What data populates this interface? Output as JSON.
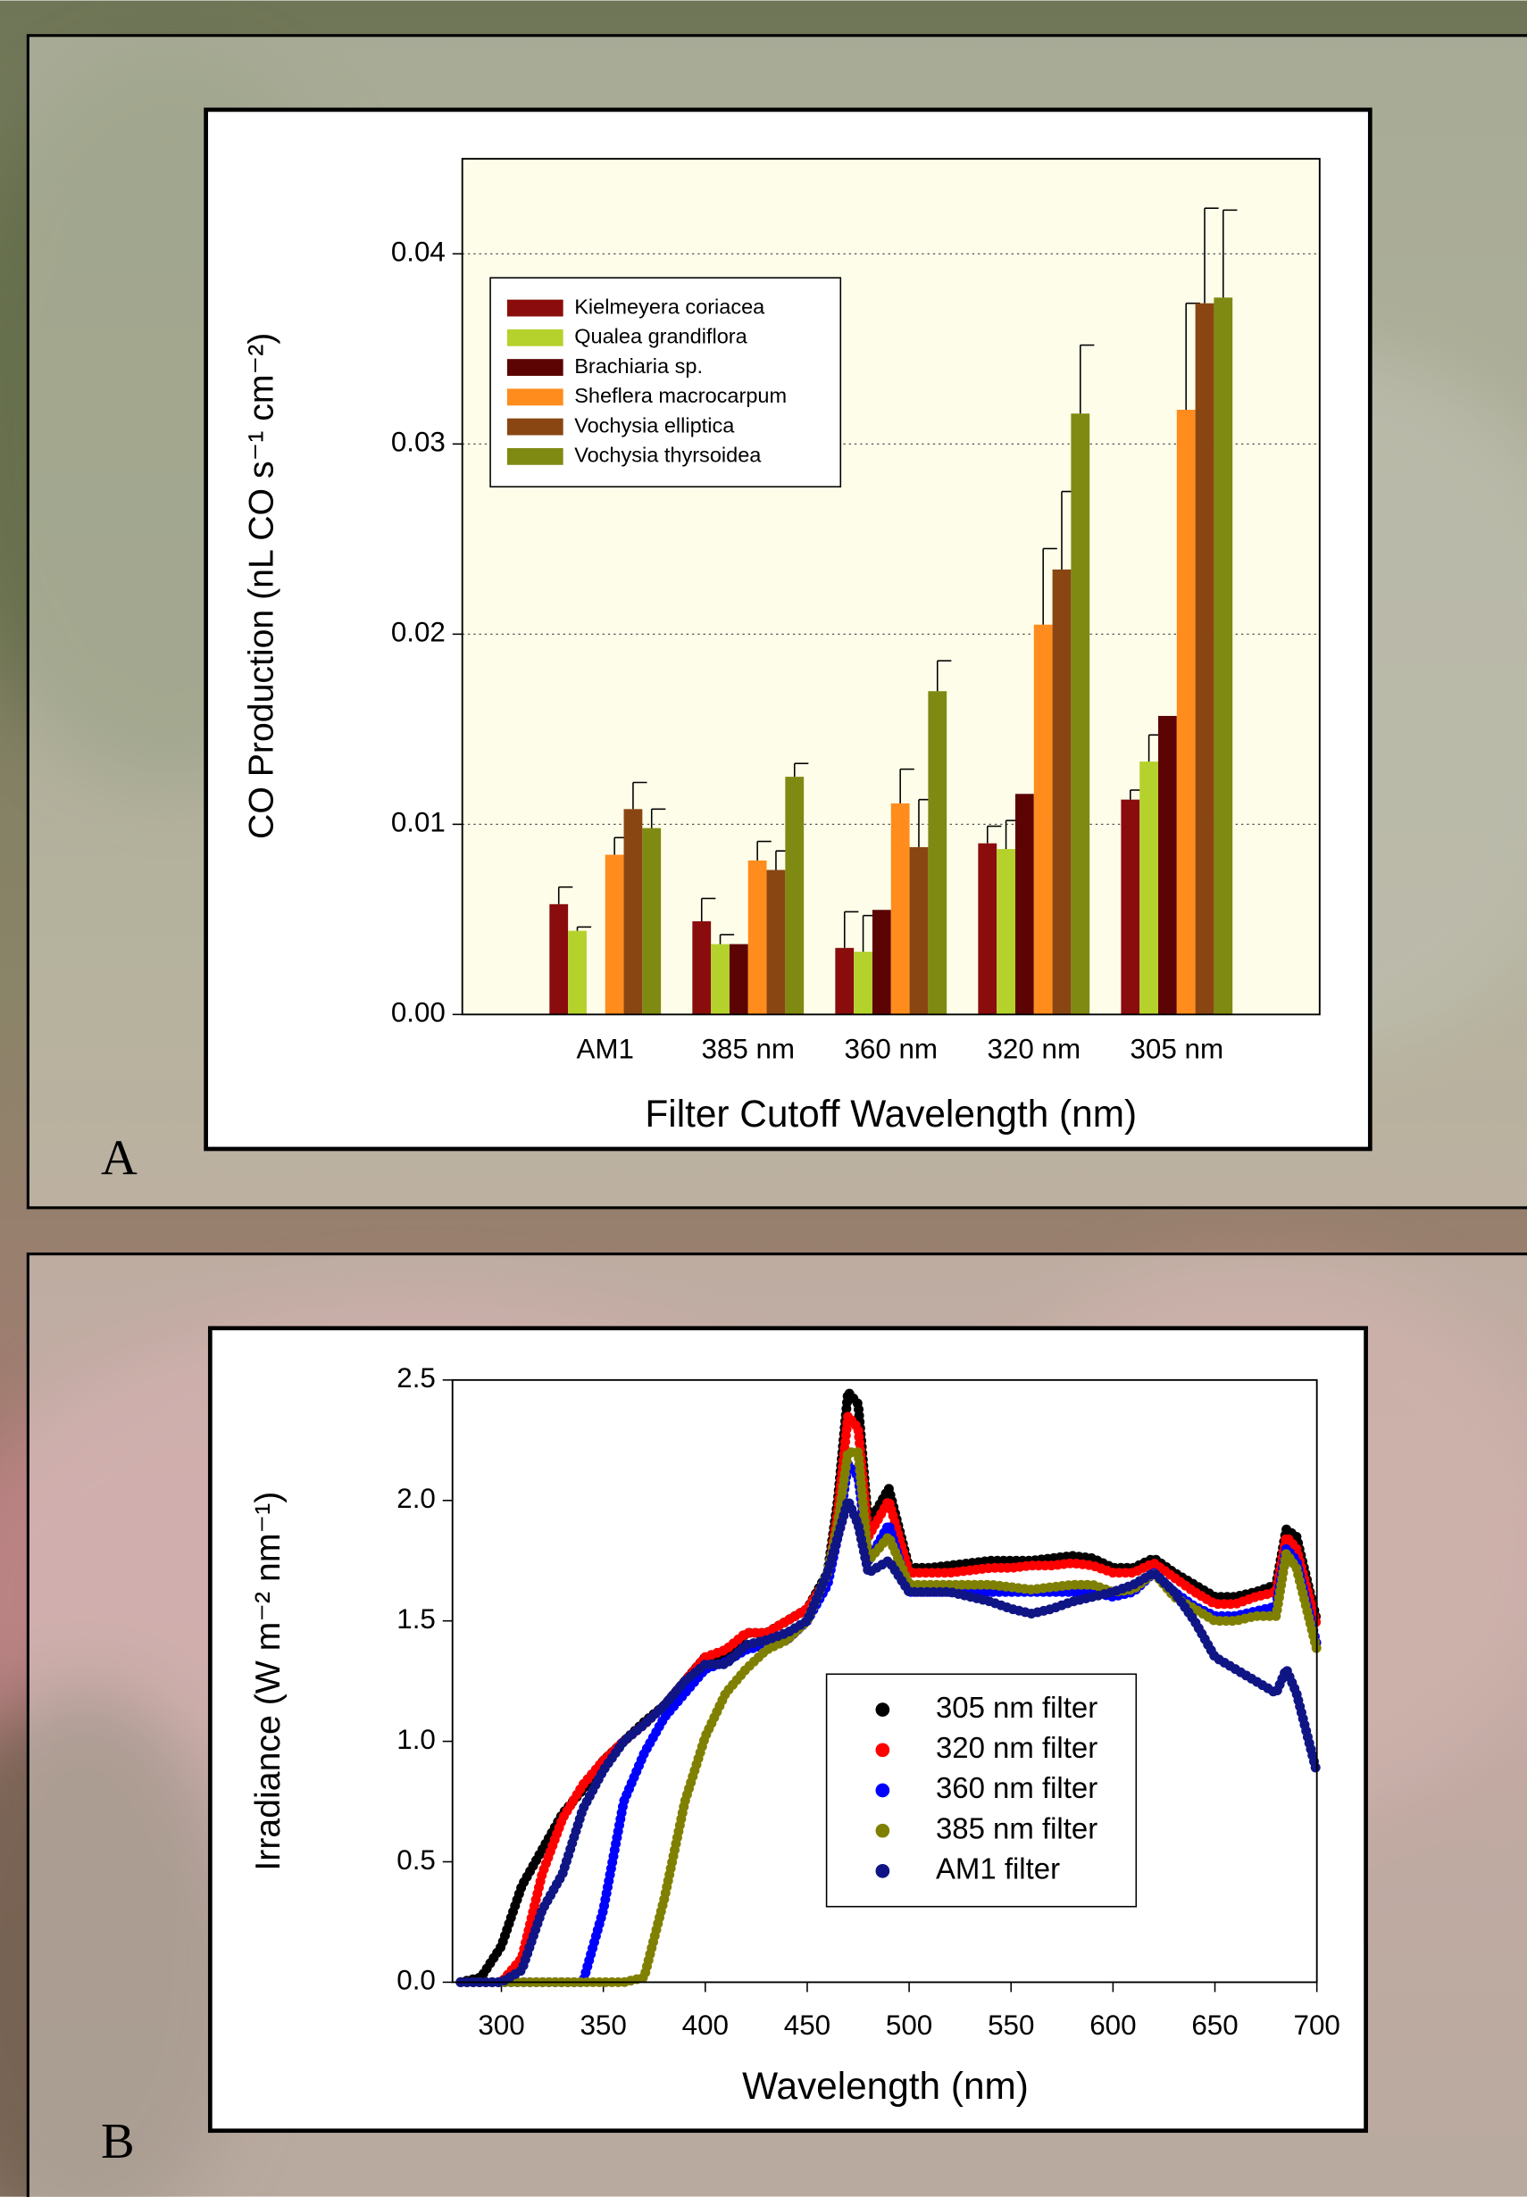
{
  "chart_data": [
    {
      "type": "bar",
      "panel_label": "A",
      "y_label": "CO Production (nL CO s⁻¹ cm⁻²)",
      "x_label": "Filter Cutoff Wavelength (nm)",
      "categories": [
        "AM1",
        "385 nm",
        "360 nm",
        "320 nm",
        "305 nm"
      ],
      "series": [
        {
          "name": "Kielmeyera coriacea",
          "color": "#8a0c0c",
          "values": [
            0.0058,
            0.0049,
            0.0035,
            0.009,
            0.0113
          ],
          "errors": [
            0.0009,
            0.0012,
            0.0019,
            0.0009,
            0.0005
          ]
        },
        {
          "name": "Qualea grandiflora",
          "color": "#b5d22c",
          "values": [
            0.0044,
            0.0037,
            0.0033,
            0.0087,
            0.0133
          ],
          "errors": [
            0.0002,
            0.0005,
            0.0019,
            0.0015,
            0.0014
          ]
        },
        {
          "name": "Brachiaria sp.",
          "color": "#5c0404",
          "values": [
            null,
            0.0037,
            0.0055,
            0.0116,
            0.0157
          ],
          "errors": [
            null,
            null,
            null,
            null,
            null
          ]
        },
        {
          "name": "Sheflera macrocarpum",
          "color": "#ff8c1c",
          "values": [
            0.0084,
            0.0081,
            0.0111,
            0.0205,
            0.0318
          ],
          "errors": [
            0.0009,
            0.001,
            0.0018,
            0.004,
            0.0056
          ]
        },
        {
          "name": "Vochysia elliptica",
          "color": "#8a4612",
          "values": [
            0.0108,
            0.0076,
            0.0088,
            0.0234,
            0.0374
          ],
          "errors": [
            0.0014,
            0.001,
            0.0025,
            0.0041,
            0.005
          ]
        },
        {
          "name": "Vochysia thyrsoidea",
          "color": "#7f8a12",
          "values": [
            0.0098,
            0.0125,
            0.017,
            0.0316,
            0.0377
          ],
          "errors": [
            0.001,
            0.0007,
            0.0016,
            0.0036,
            0.0046
          ]
        }
      ],
      "ylim": [
        0,
        0.045
      ],
      "yticks": [
        {
          "value": 0,
          "label": "0.00"
        },
        0.01,
        0.02,
        0.03,
        0.04
      ],
      "grid": true,
      "legend": "upper left"
    },
    {
      "type": "scatter",
      "panel_label": "B",
      "y_label": "Irradiance (W m⁻² nm⁻¹)",
      "x_label": "Wavelength (nm)",
      "x": [
        280,
        290,
        300,
        310,
        320,
        330,
        340,
        350,
        360,
        370,
        380,
        390,
        400,
        410,
        420,
        430,
        440,
        450,
        460,
        465,
        470,
        475,
        480,
        490,
        500,
        510,
        520,
        530,
        540,
        550,
        560,
        570,
        580,
        590,
        600,
        610,
        620,
        630,
        640,
        650,
        660,
        670,
        680,
        685,
        690,
        700
      ],
      "series": [
        {
          "name": "305 nm filter",
          "color": "#000000",
          "values": [
            0,
            0.02,
            0.15,
            0.4,
            0.55,
            0.7,
            0.8,
            0.92,
            1.0,
            1.08,
            1.15,
            1.25,
            1.35,
            1.35,
            1.45,
            1.45,
            1.5,
            1.55,
            1.7,
            2.0,
            2.45,
            2.4,
            1.9,
            2.05,
            1.72,
            1.72,
            1.73,
            1.74,
            1.75,
            1.75,
            1.75,
            1.76,
            1.77,
            1.76,
            1.72,
            1.72,
            1.76,
            1.7,
            1.65,
            1.6,
            1.6,
            1.62,
            1.65,
            1.88,
            1.85,
            1.5
          ]
        },
        {
          "name": "320 nm filter",
          "color": "#ff0000",
          "values": [
            0,
            0,
            0,
            0.1,
            0.45,
            0.68,
            0.82,
            0.92,
            1.0,
            1.07,
            1.15,
            1.25,
            1.35,
            1.38,
            1.45,
            1.45,
            1.5,
            1.55,
            1.68,
            1.95,
            2.35,
            2.3,
            1.85,
            2.0,
            1.7,
            1.7,
            1.7,
            1.71,
            1.72,
            1.72,
            1.73,
            1.73,
            1.74,
            1.73,
            1.7,
            1.7,
            1.74,
            1.68,
            1.62,
            1.57,
            1.57,
            1.6,
            1.62,
            1.85,
            1.8,
            1.48
          ]
        },
        {
          "name": "360 nm filter",
          "color": "#0000ff",
          "values": [
            0,
            0,
            0,
            0,
            0,
            0,
            0,
            0.3,
            0.75,
            0.95,
            1.1,
            1.2,
            1.3,
            1.33,
            1.38,
            1.4,
            1.42,
            1.5,
            1.65,
            1.85,
            2.15,
            2.1,
            1.75,
            1.9,
            1.62,
            1.62,
            1.62,
            1.62,
            1.62,
            1.62,
            1.62,
            1.62,
            1.62,
            1.62,
            1.6,
            1.62,
            1.7,
            1.62,
            1.56,
            1.52,
            1.52,
            1.54,
            1.56,
            1.8,
            1.75,
            1.4
          ]
        },
        {
          "name": "385 nm filter",
          "color": "#808000",
          "values": [
            0,
            0,
            0,
            0,
            0,
            0,
            0,
            0,
            0,
            0.02,
            0.35,
            0.75,
            1.02,
            1.2,
            1.3,
            1.38,
            1.42,
            1.5,
            1.7,
            1.9,
            2.2,
            2.2,
            1.75,
            1.85,
            1.65,
            1.65,
            1.65,
            1.65,
            1.65,
            1.64,
            1.63,
            1.64,
            1.65,
            1.65,
            1.62,
            1.63,
            1.7,
            1.6,
            1.55,
            1.5,
            1.5,
            1.52,
            1.52,
            1.78,
            1.72,
            1.38
          ]
        },
        {
          "name": "AM1 filter",
          "color": "#101585",
          "values": [
            0,
            0,
            0,
            0.05,
            0.3,
            0.45,
            0.72,
            0.88,
            1.0,
            1.07,
            1.15,
            1.25,
            1.32,
            1.32,
            1.4,
            1.42,
            1.45,
            1.5,
            1.7,
            1.85,
            2.0,
            1.9,
            1.7,
            1.75,
            1.62,
            1.62,
            1.62,
            1.6,
            1.58,
            1.55,
            1.53,
            1.55,
            1.58,
            1.6,
            1.62,
            1.65,
            1.7,
            1.62,
            1.5,
            1.35,
            1.3,
            1.25,
            1.2,
            1.3,
            1.2,
            0.87
          ]
        }
      ],
      "xlim": [
        276,
        700
      ],
      "xticks": [
        300,
        350,
        400,
        450,
        500,
        550,
        600,
        650,
        700
      ],
      "ylim": [
        0,
        2.5
      ],
      "yticks": [
        {
          "value": 0,
          "label": "0.0"
        },
        0.5,
        {
          "value": 1,
          "label": "1.0"
        },
        1.5,
        {
          "value": 2,
          "label": "2.0"
        },
        2.5
      ],
      "grid": false,
      "legend": "lower right"
    }
  ]
}
